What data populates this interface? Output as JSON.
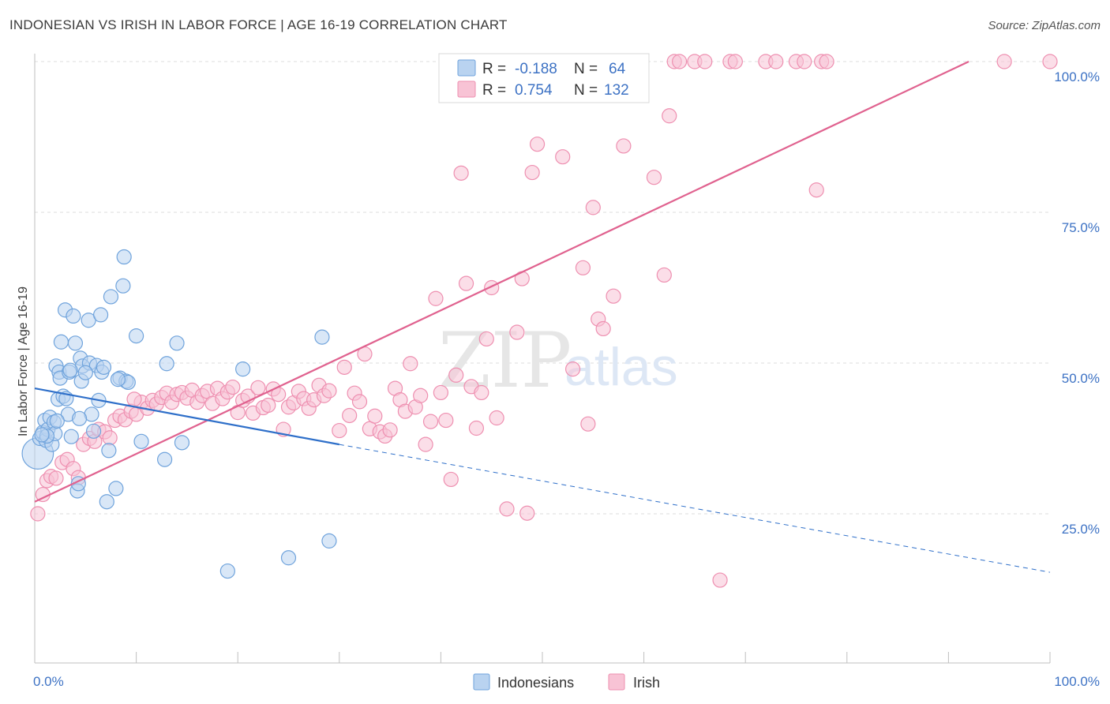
{
  "title": "INDONESIAN VS IRISH IN LABOR FORCE | AGE 16-19 CORRELATION CHART",
  "source": "Source: ZipAtlas.com",
  "watermark": {
    "zip": "ZIP",
    "atlas": "atlas"
  },
  "colors": {
    "indonesians": "#6fa3dc",
    "indonesians_fill": "#b9d3f0",
    "indonesians_line": "#2e6fc9",
    "irish": "#ee8fb0",
    "irish_fill": "#f8c3d5",
    "irish_line": "#e0628f",
    "tick": "#3d72c4",
    "grid": "#dddddd"
  },
  "legend": {
    "rows": [
      {
        "r_label": "R =",
        "r_value": "-0.188",
        "n_label": "N =",
        "n_value": "64",
        "series": "indonesians"
      },
      {
        "r_label": "R =",
        "r_value": "0.754",
        "n_label": "N =",
        "n_value": "132",
        "series": "irish"
      }
    ]
  },
  "bottom_legend": [
    {
      "label": "Indonesians",
      "series": "indonesians"
    },
    {
      "label": "Irish",
      "series": "irish"
    }
  ],
  "chart_data": {
    "type": "scatter",
    "ylabel": "In Labor Force | Age 16-19",
    "xlabel": "",
    "xlim": [
      0,
      100
    ],
    "ylim": [
      0,
      100
    ],
    "x_tick_labels": [
      {
        "value": 0,
        "label": "0.0%"
      },
      {
        "value": 100,
        "label": "100.0%"
      }
    ],
    "y_tick_labels": [
      {
        "value": 25,
        "label": "25.0%"
      },
      {
        "value": 50,
        "label": "50.0%"
      },
      {
        "value": 75,
        "label": "75.0%"
      },
      {
        "value": 100,
        "label": "100.0%"
      }
    ],
    "grid": true,
    "legend_position": "top-center",
    "series": [
      {
        "name": "Indonesians",
        "r": -0.188,
        "n": 64,
        "trend": {
          "x0": 0,
          "y0": 45.8,
          "x1": 30,
          "y1": 36.5,
          "dashed_to_x": 100,
          "dashed_to_y": 15.3
        },
        "points": [
          [
            0.3,
            35,
            2.2
          ],
          [
            0.5,
            37.5,
            1
          ],
          [
            0.8,
            38.5,
            1
          ],
          [
            1,
            40.5,
            1
          ],
          [
            1.1,
            37.2,
            1
          ],
          [
            1.3,
            39,
            1
          ],
          [
            1.5,
            41,
            1
          ],
          [
            1.7,
            36.5,
            1
          ],
          [
            1.9,
            40.2,
            1
          ],
          [
            2,
            38.3,
            1
          ],
          [
            2.1,
            49.5,
            1
          ],
          [
            2.3,
            44,
            1
          ],
          [
            2.4,
            48.5,
            1
          ],
          [
            2.5,
            47.5,
            1
          ],
          [
            2.6,
            53.5,
            1
          ],
          [
            2.8,
            44.5,
            1
          ],
          [
            3,
            58.8,
            1
          ],
          [
            3.1,
            44.1,
            1
          ],
          [
            3.3,
            41.5,
            1
          ],
          [
            3.4,
            48.5,
            1
          ],
          [
            3.6,
            37.8,
            1
          ],
          [
            3.8,
            57.8,
            1
          ],
          [
            4,
            53.3,
            1
          ],
          [
            4.2,
            28.8,
            1
          ],
          [
            4.3,
            30,
            1
          ],
          [
            4.5,
            50.8,
            1
          ],
          [
            4.6,
            47,
            1
          ],
          [
            4.7,
            49.5,
            1
          ],
          [
            5.3,
            57.1,
            1
          ],
          [
            5.4,
            50,
            1
          ],
          [
            5.6,
            41.5,
            1
          ],
          [
            5.8,
            38.7,
            1
          ],
          [
            6.1,
            49.6,
            1
          ],
          [
            6.3,
            43.8,
            1
          ],
          [
            6.5,
            58,
            1
          ],
          [
            6.6,
            48.5,
            1
          ],
          [
            6.8,
            49.3,
            1
          ],
          [
            7.1,
            27,
            1
          ],
          [
            7.3,
            35.5,
            1
          ],
          [
            7.5,
            61,
            1
          ],
          [
            8,
            29.2,
            1
          ],
          [
            8.4,
            47.5,
            1
          ],
          [
            8.7,
            62.8,
            1
          ],
          [
            8.8,
            67.6,
            1
          ],
          [
            9,
            47,
            1
          ],
          [
            9.2,
            46.8,
            1
          ],
          [
            10,
            54.5,
            1
          ],
          [
            10.5,
            37,
            1
          ],
          [
            12.8,
            34,
            1
          ],
          [
            13,
            49.9,
            1
          ],
          [
            14,
            53.3,
            1
          ],
          [
            14.5,
            36.8,
            1
          ],
          [
            19,
            15.5,
            1
          ],
          [
            20.5,
            49,
            1
          ],
          [
            25,
            17.7,
            1
          ],
          [
            28.3,
            54.3,
            1
          ],
          [
            29,
            20.5,
            1
          ],
          [
            8.2,
            47.3,
            1
          ],
          [
            3.5,
            48.8,
            1
          ],
          [
            1.2,
            37.9,
            1
          ],
          [
            0.7,
            38.1,
            1
          ],
          [
            2.2,
            40.4,
            1
          ],
          [
            5,
            48.4,
            1
          ],
          [
            4.4,
            40.8,
            1
          ]
        ]
      },
      {
        "name": "Irish",
        "r": 0.754,
        "n": 132,
        "trend": {
          "x0": 0,
          "y0": 27,
          "x1": 92,
          "y1": 100
        },
        "points": [
          [
            0.3,
            25,
            1
          ],
          [
            0.8,
            28.2,
            1
          ],
          [
            1.2,
            30.5,
            1
          ],
          [
            1.6,
            31.2,
            1
          ],
          [
            2.1,
            30.9,
            1
          ],
          [
            2.7,
            33.5,
            1
          ],
          [
            3.2,
            34,
            1
          ],
          [
            3.8,
            32.5,
            1
          ],
          [
            4.3,
            31,
            1
          ],
          [
            4.8,
            36.5,
            1
          ],
          [
            5.4,
            37.5,
            1
          ],
          [
            5.9,
            37,
            1
          ],
          [
            6.3,
            39,
            1
          ],
          [
            6.9,
            38.6,
            1
          ],
          [
            7.4,
            37.6,
            1
          ],
          [
            7.9,
            40.5,
            1
          ],
          [
            8.4,
            41.2,
            1
          ],
          [
            8.9,
            40.6,
            1
          ],
          [
            9.5,
            42,
            1
          ],
          [
            10,
            41.5,
            1
          ],
          [
            10.5,
            43.5,
            1
          ],
          [
            11.1,
            42.5,
            1
          ],
          [
            11.6,
            43.8,
            1
          ],
          [
            12,
            43.2,
            1
          ],
          [
            12.5,
            44.3,
            1
          ],
          [
            13,
            45,
            1
          ],
          [
            13.5,
            43.5,
            1
          ],
          [
            14,
            44.8,
            1
          ],
          [
            14.5,
            45.1,
            1
          ],
          [
            15,
            44.2,
            1
          ],
          [
            15.5,
            45.5,
            1
          ],
          [
            16,
            43.5,
            1
          ],
          [
            16.5,
            44.6,
            1
          ],
          [
            17,
            45.3,
            1
          ],
          [
            17.5,
            43.3,
            1
          ],
          [
            18,
            45.8,
            1
          ],
          [
            18.5,
            44.1,
            1
          ],
          [
            19,
            45.2,
            1
          ],
          [
            19.5,
            46,
            1
          ],
          [
            20,
            41.8,
            1
          ],
          [
            20.5,
            43.8,
            1
          ],
          [
            21,
            44.5,
            1
          ],
          [
            21.5,
            41.7,
            1
          ],
          [
            22,
            45.9,
            1
          ],
          [
            22.5,
            42.6,
            1
          ],
          [
            23,
            43,
            1
          ],
          [
            23.5,
            45.7,
            1
          ],
          [
            24,
            44.8,
            1
          ],
          [
            24.5,
            39,
            1
          ],
          [
            25,
            42.7,
            1
          ],
          [
            25.5,
            43.4,
            1
          ],
          [
            26,
            45.3,
            1
          ],
          [
            26.5,
            44.1,
            1
          ],
          [
            27,
            42.5,
            1
          ],
          [
            27.5,
            43.9,
            1
          ],
          [
            28,
            46.3,
            1
          ],
          [
            28.5,
            44.6,
            1
          ],
          [
            29,
            45.4,
            1
          ],
          [
            30,
            38.8,
            1
          ],
          [
            30.5,
            49.3,
            1
          ],
          [
            31,
            41.3,
            1
          ],
          [
            31.5,
            45,
            1
          ],
          [
            32,
            43.6,
            1
          ],
          [
            32.5,
            51.5,
            1
          ],
          [
            33,
            39.1,
            1
          ],
          [
            33.5,
            41.2,
            1
          ],
          [
            34,
            38.6,
            1
          ],
          [
            34.5,
            37.9,
            1
          ],
          [
            35,
            38.9,
            1
          ],
          [
            35.5,
            45.8,
            1
          ],
          [
            36,
            43.9,
            1
          ],
          [
            36.5,
            42,
            1
          ],
          [
            37,
            49.9,
            1
          ],
          [
            37.5,
            42.7,
            1
          ],
          [
            38,
            44.6,
            1
          ],
          [
            38.5,
            36.5,
            1
          ],
          [
            39,
            40.3,
            1
          ],
          [
            39.5,
            60.7,
            1
          ],
          [
            40,
            45.1,
            1
          ],
          [
            40.5,
            40.5,
            1
          ],
          [
            41,
            30.7,
            1
          ],
          [
            41.5,
            48,
            1
          ],
          [
            42,
            81.5,
            1
          ],
          [
            42.5,
            63.2,
            1
          ],
          [
            43,
            46.1,
            1
          ],
          [
            43.5,
            39.2,
            1
          ],
          [
            44,
            45.1,
            1
          ],
          [
            44.5,
            54,
            1
          ],
          [
            45,
            62.5,
            1
          ],
          [
            45.5,
            40.9,
            1
          ],
          [
            46.5,
            25.8,
            1
          ],
          [
            47.5,
            55.1,
            1
          ],
          [
            48,
            64,
            1
          ],
          [
            48.5,
            25.1,
            1
          ],
          [
            49,
            81.6,
            1
          ],
          [
            49.5,
            86.3,
            1
          ],
          [
            52,
            84.2,
            1
          ],
          [
            53,
            49,
            1
          ],
          [
            54,
            65.8,
            1
          ],
          [
            54.5,
            39.9,
            1
          ],
          [
            55,
            75.8,
            1
          ],
          [
            55.5,
            57.3,
            1
          ],
          [
            56,
            55.7,
            1
          ],
          [
            57,
            61.1,
            1
          ],
          [
            58,
            86,
            1
          ],
          [
            59,
            100,
            1
          ],
          [
            61,
            80.8,
            1
          ],
          [
            62,
            64.6,
            1
          ],
          [
            62.5,
            91,
            1
          ],
          [
            63,
            100,
            1
          ],
          [
            63.5,
            100,
            1
          ],
          [
            65,
            100,
            1
          ],
          [
            66,
            100,
            1
          ],
          [
            67.5,
            14,
            1
          ],
          [
            68.5,
            100,
            1
          ],
          [
            69,
            100,
            1
          ],
          [
            72,
            100,
            1
          ],
          [
            73,
            100,
            1
          ],
          [
            75,
            100,
            1
          ],
          [
            75.8,
            100,
            1
          ],
          [
            77,
            78.7,
            1
          ],
          [
            77.5,
            100,
            1
          ],
          [
            78,
            100,
            1
          ],
          [
            95.5,
            100,
            1
          ],
          [
            100,
            100,
            1
          ],
          [
            45.8,
            100,
            1
          ],
          [
            47,
            100,
            1
          ],
          [
            44.3,
            95,
            1
          ],
          [
            53.5,
            100,
            1
          ],
          [
            56.5,
            100,
            1
          ],
          [
            45.2,
            100,
            1
          ],
          [
            9.8,
            44,
            1
          ]
        ]
      }
    ]
  }
}
